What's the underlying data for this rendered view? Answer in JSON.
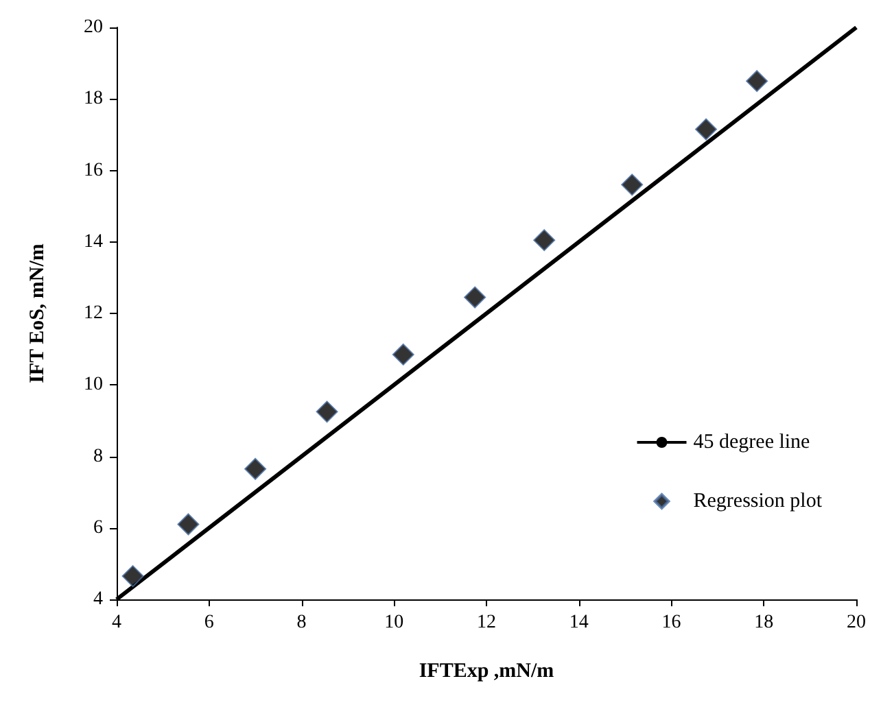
{
  "chart_data": {
    "type": "scatter",
    "xlabel": "IFTExp ,mN/m",
    "ylabel": "IFT EoS, mN/m",
    "xlim": [
      4,
      20
    ],
    "xticks": [
      4,
      6,
      8,
      10,
      12,
      14,
      16,
      18,
      20
    ],
    "ylim": [
      4,
      20
    ],
    "yticks": [
      4,
      6,
      8,
      10,
      12,
      14,
      16,
      18,
      20
    ],
    "legend": "right",
    "series": [
      {
        "name": "45 degree line",
        "type": "line",
        "color": "#000000",
        "x": [
          4,
          20
        ],
        "values": [
          4,
          20
        ]
      },
      {
        "name": "Regression plot",
        "type": "scatter",
        "color": "#000000",
        "marker": "diamond",
        "x": [
          4.35,
          5.55,
          7.0,
          8.55,
          10.2,
          11.75,
          13.25,
          15.15,
          16.75,
          17.85
        ],
        "values": [
          4.65,
          6.1,
          7.65,
          9.25,
          10.85,
          12.45,
          14.05,
          15.6,
          17.15,
          18.5
        ]
      }
    ]
  }
}
